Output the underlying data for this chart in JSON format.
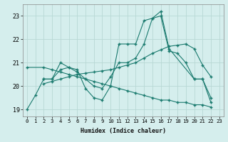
{
  "xlabel": "Humidex (Indice chaleur)",
  "xlim": [
    -0.5,
    23.5
  ],
  "ylim": [
    18.7,
    23.5
  ],
  "yticks": [
    19,
    20,
    21,
    22,
    23
  ],
  "xticks": [
    0,
    1,
    2,
    3,
    4,
    5,
    6,
    7,
    8,
    9,
    10,
    11,
    12,
    13,
    14,
    15,
    16,
    17,
    18,
    19,
    20,
    21,
    22,
    23
  ],
  "background_color": "#d5eeed",
  "grid_color": "#b8d8d5",
  "line_color": "#1a7a6e",
  "lines": [
    {
      "x": [
        0,
        1,
        2,
        3,
        4,
        5,
        6,
        7,
        8,
        9,
        10,
        11,
        12,
        13,
        14,
        15,
        16,
        17,
        20,
        21,
        22
      ],
      "y": [
        19.0,
        19.6,
        20.3,
        20.3,
        21.0,
        20.8,
        20.7,
        19.9,
        19.5,
        19.4,
        20.0,
        21.8,
        21.8,
        21.8,
        22.8,
        22.9,
        23.2,
        21.6,
        20.3,
        20.3,
        19.3
      ]
    },
    {
      "x": [
        2,
        3,
        4,
        5,
        6,
        7,
        8,
        9,
        10,
        11,
        12,
        13,
        14,
        15,
        16,
        17,
        18,
        19,
        20,
        21,
        22
      ],
      "y": [
        20.1,
        20.2,
        20.3,
        20.4,
        20.5,
        20.55,
        20.6,
        20.65,
        20.7,
        20.8,
        20.9,
        21.0,
        21.2,
        21.4,
        21.55,
        21.7,
        21.75,
        21.8,
        21.6,
        20.9,
        20.4
      ]
    },
    {
      "x": [
        2,
        3,
        4,
        5,
        6,
        7,
        8,
        9,
        10,
        11,
        12,
        13,
        14,
        15,
        16,
        17,
        18,
        19,
        20,
        21,
        22
      ],
      "y": [
        20.3,
        20.3,
        20.7,
        20.8,
        20.6,
        20.3,
        20.0,
        19.9,
        20.4,
        21.0,
        21.0,
        21.2,
        21.8,
        22.9,
        23.0,
        21.5,
        21.4,
        21.0,
        20.3,
        20.3,
        19.5
      ]
    },
    {
      "x": [
        0,
        2,
        3,
        4,
        5,
        6,
        7,
        8,
        9,
        10,
        11,
        12,
        13,
        14,
        15,
        16,
        17,
        18,
        19,
        20,
        21,
        22
      ],
      "y": [
        20.8,
        20.8,
        20.7,
        20.6,
        20.5,
        20.4,
        20.3,
        20.2,
        20.1,
        20.0,
        19.9,
        19.8,
        19.7,
        19.6,
        19.5,
        19.4,
        19.4,
        19.3,
        19.3,
        19.2,
        19.2,
        19.1
      ]
    }
  ]
}
